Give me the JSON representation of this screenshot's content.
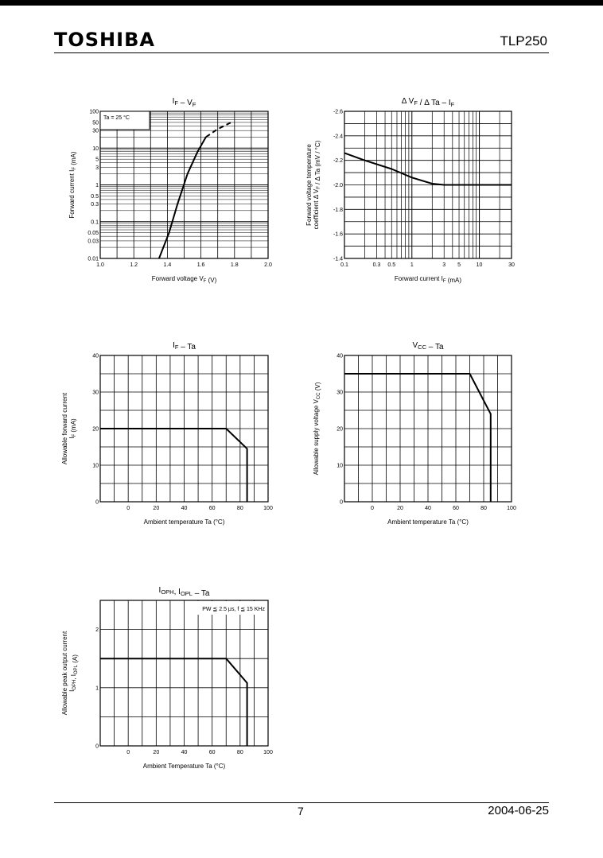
{
  "header": {
    "brand": "TOSHIBA",
    "part_number": "TLP250"
  },
  "footer": {
    "page": "7",
    "date": "2004-06-25"
  },
  "chart_data": [
    {
      "id": "if-vf",
      "type": "line",
      "title_parts": [
        {
          "t": "I"
        },
        {
          "t": "F",
          "sub": true
        },
        {
          "t": " – V"
        },
        {
          "t": "F",
          "sub": true
        }
      ],
      "xlabel_parts": [
        {
          "t": "Forward voltage        V"
        },
        {
          "t": "F",
          "sub": true
        },
        {
          "t": "   (V)"
        }
      ],
      "ylabel_lines": [
        [
          {
            "t": "Forward current   I"
          },
          {
            "t": "F",
            "sub": true
          },
          {
            "t": "   (mA)"
          }
        ]
      ],
      "x_scale": "linear",
      "xlim": [
        1.0,
        2.0
      ],
      "y_scale": "log",
      "ylim": [
        0.01,
        100
      ],
      "x_ticks": [
        "1.0",
        "1.2",
        "1.4",
        "1.6",
        "1.8",
        "2.0"
      ],
      "y_ticks": [
        "0.01",
        "0.03",
        "0.05",
        "0.1",
        "0.3",
        "0.5",
        "1",
        "3",
        "5",
        "10",
        "30",
        "50",
        "100"
      ],
      "grid": true,
      "annotation": "Ta = 25 °C",
      "series": [
        {
          "style": "solid",
          "x": [
            1.35,
            1.41,
            1.46,
            1.52,
            1.58,
            1.63
          ],
          "y": [
            0.01,
            0.05,
            0.3,
            2,
            8,
            20
          ]
        },
        {
          "style": "dashed",
          "x": [
            1.63,
            1.7,
            1.78
          ],
          "y": [
            20,
            33,
            50
          ]
        }
      ]
    },
    {
      "id": "dvf-dta",
      "type": "line",
      "title_parts": [
        {
          "t": "Δ V"
        },
        {
          "t": "F",
          "sub": true
        },
        {
          "t": " /   Δ Ta – I"
        },
        {
          "t": "F",
          "sub": true
        }
      ],
      "xlabel_parts": [
        {
          "t": "Forward current        I"
        },
        {
          "t": "F",
          "sub": true
        },
        {
          "t": "   (mA)"
        }
      ],
      "ylabel_lines": [
        [
          {
            "t": "Forward voltage temperature"
          }
        ],
        [
          {
            "t": "coefficient   Δ V"
          },
          {
            "t": "F",
            "sub": true
          },
          {
            "t": " /   Δ Ta (mV / °C)"
          }
        ]
      ],
      "x_scale": "log",
      "xlim": [
        0.1,
        30
      ],
      "y_scale": "linear",
      "ylim": [
        -1.4,
        -2.6
      ],
      "x_ticks": [
        "0.1",
        "0.3",
        "0.5",
        "1",
        "3",
        "5",
        "10",
        "30"
      ],
      "y_ticks": [
        "-1.4",
        "-1.6",
        "-1.8",
        "-2.0",
        "-2.2",
        "-2.4",
        "-2.6"
      ],
      "grid": true,
      "series": [
        {
          "style": "solid",
          "x": [
            0.1,
            0.2,
            0.5,
            1.0,
            2.0,
            3.0,
            10,
            30
          ],
          "y": [
            -2.26,
            -2.2,
            -2.13,
            -2.06,
            -2.01,
            -2.0,
            -2.0,
            -2.0
          ]
        }
      ]
    },
    {
      "id": "if-ta",
      "type": "line",
      "title_parts": [
        {
          "t": "I"
        },
        {
          "t": "F",
          "sub": true
        },
        {
          "t": " – Ta"
        }
      ],
      "xlabel_parts": [
        {
          "t": "Ambient temperature    Ta    (°C)"
        }
      ],
      "ylabel_lines": [
        [
          {
            "t": "Allowable forward current"
          }
        ],
        [
          {
            "t": "I"
          },
          {
            "t": "F",
            "sub": true
          },
          {
            "t": "     (mA)"
          }
        ]
      ],
      "x_scale": "linear",
      "xlim": [
        -20,
        100
      ],
      "y_scale": "linear",
      "ylim": [
        0,
        40
      ],
      "x_ticks": [
        "0",
        "20",
        "40",
        "60",
        "80",
        "100"
      ],
      "y_ticks": [
        "0",
        "10",
        "20",
        "30",
        "40"
      ],
      "grid": true,
      "series": [
        {
          "style": "solid",
          "x": [
            -20,
            70,
            85,
            85
          ],
          "y": [
            20,
            20,
            14.5,
            0
          ]
        }
      ]
    },
    {
      "id": "vcc-ta",
      "type": "line",
      "title_parts": [
        {
          "t": "V"
        },
        {
          "t": "CC",
          "sub": true
        },
        {
          "t": " – Ta"
        }
      ],
      "xlabel_parts": [
        {
          "t": "Ambient temperature    Ta    (°C)"
        }
      ],
      "ylabel_lines": [
        [
          {
            "t": "Allowable supply voltage     V"
          },
          {
            "t": "CC",
            "sub": true
          },
          {
            "t": "    (V)"
          }
        ]
      ],
      "x_scale": "linear",
      "xlim": [
        -20,
        100
      ],
      "y_scale": "linear",
      "ylim": [
        0,
        40
      ],
      "x_ticks": [
        "0",
        "20",
        "40",
        "60",
        "80",
        "100"
      ],
      "y_ticks": [
        "0",
        "10",
        "20",
        "30",
        "40"
      ],
      "grid": true,
      "series": [
        {
          "style": "solid",
          "x": [
            -20,
            70,
            85,
            85
          ],
          "y": [
            35,
            35,
            24,
            0
          ]
        }
      ]
    },
    {
      "id": "ioph-ta",
      "type": "line",
      "title_parts": [
        {
          "t": "I"
        },
        {
          "t": "OPH",
          "sub": true
        },
        {
          "t": ", I"
        },
        {
          "t": "OPL",
          "sub": true
        },
        {
          "t": " – Ta"
        }
      ],
      "xlabel_parts": [
        {
          "t": "Ambient Temperature    Ta    (°C)"
        }
      ],
      "ylabel_lines": [
        [
          {
            "t": "Allowable peak output current"
          }
        ],
        [
          {
            "t": "I"
          },
          {
            "t": "OPH",
            "sub": true
          },
          {
            "t": ", I"
          },
          {
            "t": "OPL",
            "sub": true
          },
          {
            "t": "    (A)"
          }
        ]
      ],
      "x_scale": "linear",
      "xlim": [
        -20,
        100
      ],
      "y_scale": "linear",
      "ylim": [
        0,
        2.5
      ],
      "x_ticks": [
        "0",
        "20",
        "40",
        "60",
        "80",
        "100"
      ],
      "y_ticks": [
        "0",
        "1",
        "2"
      ],
      "grid": true,
      "annotation": "PW ≦ 2.5 μs, f ≦ 15 KHz",
      "series": [
        {
          "style": "solid",
          "x": [
            -20,
            70,
            85,
            85
          ],
          "y": [
            1.5,
            1.5,
            1.08,
            0
          ]
        }
      ]
    }
  ]
}
